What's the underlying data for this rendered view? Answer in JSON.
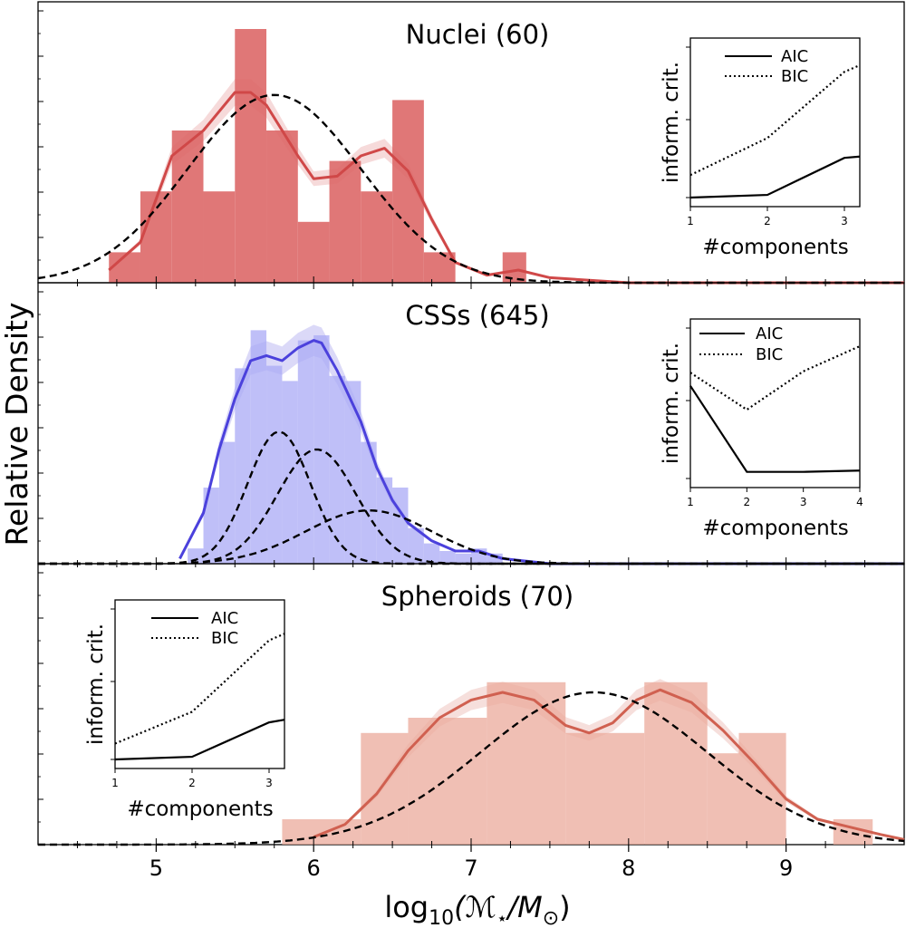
{
  "figure": {
    "ylabel": "Relative Density",
    "xlabel_main": "log",
    "xlabel_sub": "10",
    "xlabel_rest": "(ℳ",
    "xlabel_star": "⋆",
    "xlabel_tail": "/M",
    "xlabel_odot": "⊙",
    "xlabel_close": ")"
  },
  "chart_data": [
    {
      "type": "bar",
      "title": "Nuclei (60)",
      "xlim": [
        4.25,
        9.75
      ],
      "ylim": [
        0,
        1.0
      ],
      "hist_color": "#dc6464",
      "kde_color": "#d04848",
      "bins": [
        [
          4.7,
          4.9,
          0.12
        ],
        [
          4.9,
          5.1,
          0.36
        ],
        [
          5.1,
          5.3,
          0.6
        ],
        [
          5.3,
          5.5,
          0.36
        ],
        [
          5.5,
          5.7,
          1.0
        ],
        [
          5.7,
          5.9,
          0.6
        ],
        [
          5.9,
          6.1,
          0.24
        ],
        [
          6.1,
          6.3,
          0.48
        ],
        [
          6.3,
          6.5,
          0.36
        ],
        [
          6.5,
          6.7,
          0.72
        ],
        [
          6.7,
          6.9,
          0.12
        ],
        [
          7.2,
          7.35,
          0.12
        ]
      ],
      "kde": [
        [
          4.7,
          0.05
        ],
        [
          4.9,
          0.16
        ],
        [
          5.1,
          0.5
        ],
        [
          5.3,
          0.6
        ],
        [
          5.5,
          0.75
        ],
        [
          5.6,
          0.75
        ],
        [
          5.7,
          0.7
        ],
        [
          5.9,
          0.5
        ],
        [
          6.0,
          0.41
        ],
        [
          6.15,
          0.42
        ],
        [
          6.3,
          0.5
        ],
        [
          6.45,
          0.53
        ],
        [
          6.6,
          0.44
        ],
        [
          6.75,
          0.25
        ],
        [
          6.9,
          0.08
        ],
        [
          7.1,
          0.03
        ],
        [
          7.3,
          0.05
        ],
        [
          7.5,
          0.02
        ],
        [
          8.0,
          0.0
        ],
        [
          9.75,
          0.0
        ]
      ],
      "fit_components": [
        [
          5.75,
          0.55,
          0.74
        ]
      ],
      "ytick_count": 6,
      "inset": {
        "ylabel": "inform. crit.",
        "xlabel": "#components",
        "xticks": [
          "1",
          "2",
          "3"
        ],
        "legend": [
          "AIC",
          "BIC"
        ],
        "x": [
          1,
          2,
          3,
          3.2
        ],
        "aic": [
          0.0,
          0.02,
          0.3,
          0.31
        ],
        "bic": [
          0.17,
          0.45,
          0.95,
          1.0
        ]
      }
    },
    {
      "type": "bar",
      "title": "CSSs (645)",
      "xlim": [
        4.25,
        9.75
      ],
      "ylim": [
        0,
        1.0
      ],
      "hist_color": "#aaaaf5",
      "kde_color": "#4b41dc",
      "bins": [
        [
          5.2,
          5.3,
          0.06
        ],
        [
          5.3,
          5.4,
          0.3
        ],
        [
          5.4,
          5.5,
          0.48
        ],
        [
          5.5,
          5.6,
          0.77
        ],
        [
          5.6,
          5.7,
          0.92
        ],
        [
          5.7,
          5.8,
          0.78
        ],
        [
          5.8,
          5.9,
          0.72
        ],
        [
          5.9,
          6.0,
          0.88
        ],
        [
          6.0,
          6.1,
          0.9
        ],
        [
          6.1,
          6.2,
          0.74
        ],
        [
          6.2,
          6.3,
          0.72
        ],
        [
          6.3,
          6.4,
          0.48
        ],
        [
          6.4,
          6.5,
          0.34
        ],
        [
          6.5,
          6.6,
          0.3
        ],
        [
          6.6,
          6.7,
          0.14
        ],
        [
          6.7,
          6.8,
          0.08
        ],
        [
          6.8,
          6.9,
          0.05
        ],
        [
          6.9,
          7.0,
          0.04
        ],
        [
          7.0,
          7.1,
          0.06
        ],
        [
          7.1,
          7.2,
          0.04
        ]
      ],
      "kde": [
        [
          5.15,
          0.02
        ],
        [
          5.3,
          0.2
        ],
        [
          5.4,
          0.45
        ],
        [
          5.5,
          0.65
        ],
        [
          5.6,
          0.8
        ],
        [
          5.7,
          0.82
        ],
        [
          5.8,
          0.8
        ],
        [
          5.9,
          0.85
        ],
        [
          6.0,
          0.88
        ],
        [
          6.05,
          0.87
        ],
        [
          6.15,
          0.76
        ],
        [
          6.3,
          0.56
        ],
        [
          6.4,
          0.38
        ],
        [
          6.5,
          0.25
        ],
        [
          6.6,
          0.16
        ],
        [
          6.75,
          0.09
        ],
        [
          6.9,
          0.05
        ],
        [
          7.05,
          0.05
        ],
        [
          7.2,
          0.02
        ],
        [
          7.5,
          0.0
        ],
        [
          9.75,
          0.0
        ]
      ],
      "fit_components": [
        [
          5.78,
          0.2,
          0.52
        ],
        [
          6.02,
          0.25,
          0.45
        ],
        [
          6.35,
          0.4,
          0.21
        ]
      ],
      "ytick_count": 6,
      "inset": {
        "ylabel": "inform. crit.",
        "xlabel": "#components",
        "xticks": [
          "1",
          "2",
          "3",
          "4"
        ],
        "legend": [
          "AIC",
          "BIC"
        ],
        "x": [
          1,
          2,
          3,
          4
        ],
        "aic": [
          0.7,
          0.05,
          0.05,
          0.06
        ],
        "bic": [
          0.8,
          0.52,
          0.81,
          1.0
        ]
      }
    },
    {
      "type": "bar",
      "title": "Spheroids (70)",
      "xlim": [
        4.25,
        9.75
      ],
      "ylim": [
        0,
        1.0
      ],
      "hist_color": "#ebaa9b",
      "kde_color": "#d06050",
      "bins": [
        [
          5.8,
          6.3,
          0.1
        ],
        [
          6.3,
          6.6,
          0.44
        ],
        [
          6.6,
          7.1,
          0.5
        ],
        [
          7.1,
          7.6,
          0.64
        ],
        [
          7.6,
          8.1,
          0.44
        ],
        [
          8.1,
          8.5,
          0.64
        ],
        [
          8.5,
          8.7,
          0.36
        ],
        [
          8.7,
          9.0,
          0.44
        ],
        [
          9.3,
          9.55,
          0.1
        ]
      ],
      "kde": [
        [
          6.0,
          0.03
        ],
        [
          6.2,
          0.08
        ],
        [
          6.4,
          0.2
        ],
        [
          6.6,
          0.37
        ],
        [
          6.8,
          0.5
        ],
        [
          7.0,
          0.57
        ],
        [
          7.2,
          0.6
        ],
        [
          7.4,
          0.57
        ],
        [
          7.6,
          0.47
        ],
        [
          7.75,
          0.44
        ],
        [
          7.9,
          0.48
        ],
        [
          8.05,
          0.57
        ],
        [
          8.2,
          0.61
        ],
        [
          8.4,
          0.56
        ],
        [
          8.6,
          0.45
        ],
        [
          8.8,
          0.32
        ],
        [
          9.0,
          0.18
        ],
        [
          9.2,
          0.1
        ],
        [
          9.4,
          0.07
        ],
        [
          9.6,
          0.04
        ],
        [
          9.75,
          0.02
        ]
      ],
      "fit_components": [
        [
          7.78,
          0.72,
          0.6
        ]
      ],
      "ytick_count": 6,
      "inset": {
        "ylabel": "inform. crit.",
        "xlabel": "#components",
        "xticks": [
          "1",
          "2",
          "3"
        ],
        "legend": [
          "AIC",
          "BIC"
        ],
        "x": [
          1,
          2,
          3,
          3.2
        ],
        "aic": [
          0.0,
          0.02,
          0.28,
          0.3
        ],
        "bic": [
          0.12,
          0.36,
          0.9,
          0.95
        ]
      }
    }
  ],
  "xaxis": {
    "ticks": [
      "5",
      "6",
      "7",
      "8",
      "9"
    ]
  }
}
